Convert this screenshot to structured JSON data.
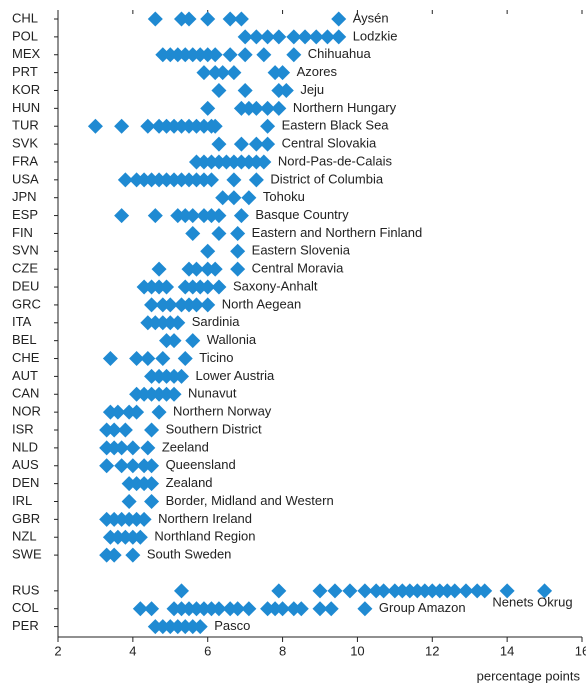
{
  "chart_data": {
    "type": "dot",
    "x_label": "percentage points",
    "color": "#1f8ad2",
    "xlim": [
      2,
      16
    ],
    "xticks": [
      2,
      4,
      6,
      8,
      10,
      12,
      14,
      16
    ],
    "categories": [
      "CHL",
      "POL",
      "MEX",
      "PRT",
      "KOR",
      "HUN",
      "TUR",
      "SVK",
      "FRA",
      "USA",
      "JPN",
      "ESP",
      "FIN",
      "SVN",
      "CZE",
      "DEU",
      "GRC",
      "ITA",
      "BEL",
      "CHE",
      "AUT",
      "CAN",
      "NOR",
      "ISR",
      "NLD",
      "AUS",
      "DEN",
      "IRL",
      "GBR",
      "NZL",
      "SWE",
      null,
      "RUS",
      "COL",
      "PER"
    ],
    "annotations": [
      "Aysén",
      "Lodzkie",
      "Chihuahua",
      "Azores",
      "Jeju",
      "Northern Hungary",
      "Eastern Black Sea",
      "Central Slovakia",
      "Nord-Pas-de-Calais",
      "District of Columbia",
      "Tohoku",
      "Basque Country",
      "Eastern and Northern Finland",
      "Eastern Slovenia",
      "Central Moravia",
      "Saxony-Anhalt",
      "North Aegean",
      "Sardinia",
      "Wallonia",
      "Ticino",
      "Lower Austria",
      "Nunavut",
      "Northern Norway",
      "Southern District",
      "Zeeland",
      "Queensland",
      "Zealand",
      "Border, Midland and Western",
      "Northern Ireland",
      "Northland Region",
      "South Sweden",
      null,
      "Nenets Okrug",
      "Group Amazon",
      "Pasco"
    ],
    "values": [
      [
        4.6,
        5.3,
        5.5,
        6.0,
        6.6,
        6.9,
        9.5
      ],
      [
        7.0,
        7.3,
        7.6,
        7.9,
        8.3,
        8.6,
        8.9,
        9.2,
        9.5
      ],
      [
        4.8,
        5.0,
        5.2,
        5.4,
        5.6,
        5.8,
        6.0,
        6.2,
        6.6,
        7.0,
        7.5,
        8.3
      ],
      [
        5.9,
        6.2,
        6.4,
        6.7,
        7.8,
        8.0
      ],
      [
        6.3,
        7.0,
        7.9,
        8.1
      ],
      [
        6.0,
        6.9,
        7.1,
        7.3,
        7.6,
        7.9
      ],
      [
        3.0,
        3.7,
        4.4,
        4.7,
        4.9,
        5.1,
        5.3,
        5.5,
        5.7,
        5.9,
        6.1,
        6.2,
        7.6
      ],
      [
        6.3,
        6.9,
        7.3,
        7.6
      ],
      [
        5.7,
        5.9,
        6.1,
        6.3,
        6.5,
        6.7,
        6.9,
        7.1,
        7.3,
        7.5
      ],
      [
        3.8,
        4.1,
        4.3,
        4.5,
        4.7,
        4.9,
        5.1,
        5.3,
        5.5,
        5.7,
        5.9,
        6.1,
        6.7,
        7.3
      ],
      [
        6.4,
        6.7,
        7.1
      ],
      [
        3.7,
        4.6,
        5.2,
        5.4,
        5.6,
        5.9,
        6.1,
        6.3,
        6.9
      ],
      [
        5.6,
        6.3,
        6.8
      ],
      [
        6.0,
        6.8
      ],
      [
        4.7,
        5.5,
        5.7,
        6.0,
        6.2,
        6.8
      ],
      [
        4.3,
        4.5,
        4.7,
        4.9,
        5.4,
        5.6,
        5.8,
        6.0,
        6.3
      ],
      [
        4.5,
        4.8,
        5.0,
        5.3,
        5.5,
        5.7,
        6.0
      ],
      [
        4.4,
        4.6,
        4.8,
        5.0,
        5.2
      ],
      [
        4.9,
        5.1,
        5.6
      ],
      [
        3.4,
        4.1,
        4.4,
        4.8,
        5.4
      ],
      [
        4.5,
        4.7,
        4.9,
        5.1,
        5.3
      ],
      [
        4.1,
        4.3,
        4.5,
        4.7,
        4.9,
        5.1
      ],
      [
        3.4,
        3.6,
        3.9,
        4.1,
        4.7
      ],
      [
        3.3,
        3.5,
        3.8,
        4.5
      ],
      [
        3.3,
        3.5,
        3.7,
        4.0,
        4.4
      ],
      [
        3.3,
        3.7,
        4.0,
        4.3,
        4.5
      ],
      [
        3.9,
        4.1,
        4.3,
        4.5
      ],
      [
        3.9,
        4.5
      ],
      [
        3.3,
        3.5,
        3.7,
        3.9,
        4.1,
        4.3
      ],
      [
        3.4,
        3.6,
        3.8,
        4.0,
        4.2
      ],
      [
        3.3,
        3.5,
        4.0
      ],
      [],
      [
        5.3,
        7.9,
        9.0,
        9.4,
        9.8,
        10.2,
        10.5,
        10.7,
        11.0,
        11.2,
        11.4,
        11.6,
        11.8,
        12.0,
        12.2,
        12.4,
        12.6,
        12.9,
        13.2,
        13.4,
        14.0,
        15.0
      ],
      [
        4.2,
        4.5,
        5.1,
        5.3,
        5.5,
        5.7,
        5.9,
        6.1,
        6.3,
        6.6,
        6.8,
        7.1,
        7.6,
        7.8,
        8.0,
        8.3,
        8.5,
        9.0,
        9.3,
        10.2
      ],
      [
        4.6,
        4.8,
        5.0,
        5.2,
        5.4,
        5.6,
        5.8
      ]
    ]
  }
}
